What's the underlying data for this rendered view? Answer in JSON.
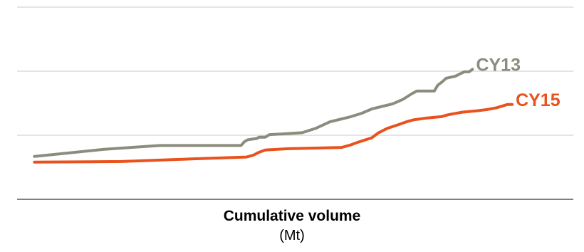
{
  "chart_data": {
    "type": "line",
    "xlabel": "Cumulative volume",
    "xunit": "(Mt)",
    "ylabel": "",
    "grid": "horizontal",
    "y_gridlines": [
      300,
      200,
      100
    ],
    "xlim": [
      0,
      800
    ],
    "ylim": [
      0,
      300
    ],
    "series": [
      {
        "name": "CY13",
        "color": "#8c8c7e",
        "points": [
          [
            25,
            67
          ],
          [
            125,
            78
          ],
          [
            205,
            84
          ],
          [
            322,
            84
          ],
          [
            327,
            90
          ],
          [
            332,
            93
          ],
          [
            345,
            95
          ],
          [
            348,
            97
          ],
          [
            357,
            97
          ],
          [
            363,
            101
          ],
          [
            380,
            102
          ],
          [
            410,
            104
          ],
          [
            430,
            111
          ],
          [
            440,
            116
          ],
          [
            450,
            121
          ],
          [
            465,
            125
          ],
          [
            480,
            129
          ],
          [
            495,
            134
          ],
          [
            510,
            141
          ],
          [
            525,
            145
          ],
          [
            540,
            149
          ],
          [
            555,
            156
          ],
          [
            568,
            165
          ],
          [
            575,
            169
          ],
          [
            600,
            169
          ],
          [
            605,
            178
          ],
          [
            612,
            184
          ],
          [
            617,
            189
          ],
          [
            630,
            192
          ],
          [
            643,
            199
          ],
          [
            650,
            199
          ],
          [
            655,
            203
          ]
        ]
      },
      {
        "name": "CY15",
        "color": "#e8521e",
        "points": [
          [
            25,
            58
          ],
          [
            150,
            59
          ],
          [
            250,
            63
          ],
          [
            330,
            66
          ],
          [
            340,
            69
          ],
          [
            347,
            73
          ],
          [
            357,
            77
          ],
          [
            390,
            79
          ],
          [
            430,
            80
          ],
          [
            467,
            81
          ],
          [
            480,
            85
          ],
          [
            490,
            89
          ],
          [
            510,
            96
          ],
          [
            520,
            104
          ],
          [
            533,
            111
          ],
          [
            547,
            116
          ],
          [
            560,
            121
          ],
          [
            570,
            124
          ],
          [
            590,
            127
          ],
          [
            610,
            129
          ],
          [
            620,
            132
          ],
          [
            640,
            136
          ],
          [
            660,
            138
          ],
          [
            675,
            140
          ],
          [
            690,
            143
          ],
          [
            705,
            148
          ],
          [
            712,
            148
          ]
        ]
      }
    ]
  }
}
